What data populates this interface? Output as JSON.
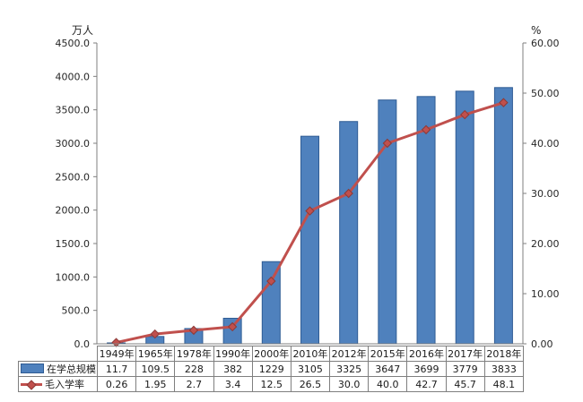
{
  "chart_data": {
    "type": "bar+line",
    "title": "",
    "categories": [
      "1949年",
      "1965年",
      "1978年",
      "1990年",
      "2000年",
      "2010年",
      "2012年",
      "2015年",
      "2016年",
      "2017年",
      "2018年"
    ],
    "series": [
      {
        "name": "在学总规模",
        "type": "bar",
        "axis": "left",
        "color": "#4f81bd",
        "border_color": "#2f5c94",
        "values": [
          11.7,
          109.5,
          228,
          382,
          1229,
          3105,
          3325,
          3647,
          3699,
          3779,
          3833
        ],
        "labels": [
          "11.7",
          "109.5",
          "228",
          "382",
          "1229",
          "3105",
          "3325",
          "3647",
          "3699",
          "3779",
          "3833"
        ]
      },
      {
        "name": "毛入学率",
        "type": "line",
        "axis": "right",
        "color": "#c0504d",
        "marker": "diamond",
        "marker_stroke": "#8c3a38",
        "values": [
          0.26,
          1.95,
          2.7,
          3.4,
          12.5,
          26.5,
          30.0,
          40.0,
          42.7,
          45.7,
          48.1
        ],
        "labels": [
          "0.26",
          "1.95",
          "2.7",
          "3.4",
          "12.5",
          "26.5",
          "30.0",
          "40.0",
          "42.7",
          "45.7",
          "48.1"
        ]
      }
    ],
    "left_axis": {
      "title": "万人",
      "min": 0,
      "max": 4500,
      "step": 500,
      "tick_labels": [
        "4500.0",
        "4000.0",
        "3500.0",
        "3000.0",
        "2500.0",
        "2000.0",
        "1500.0",
        "1000.0",
        "500.0",
        "0.0"
      ]
    },
    "right_axis": {
      "title": "%",
      "min": 0,
      "max": 60,
      "step": 10,
      "tick_labels": [
        "60.00",
        "50.00",
        "40.00",
        "30.00",
        "20.00",
        "10.00",
        "0.00"
      ]
    },
    "grid": false,
    "legend_position": "data-table-left",
    "axis_color": "#7f7f7f"
  }
}
